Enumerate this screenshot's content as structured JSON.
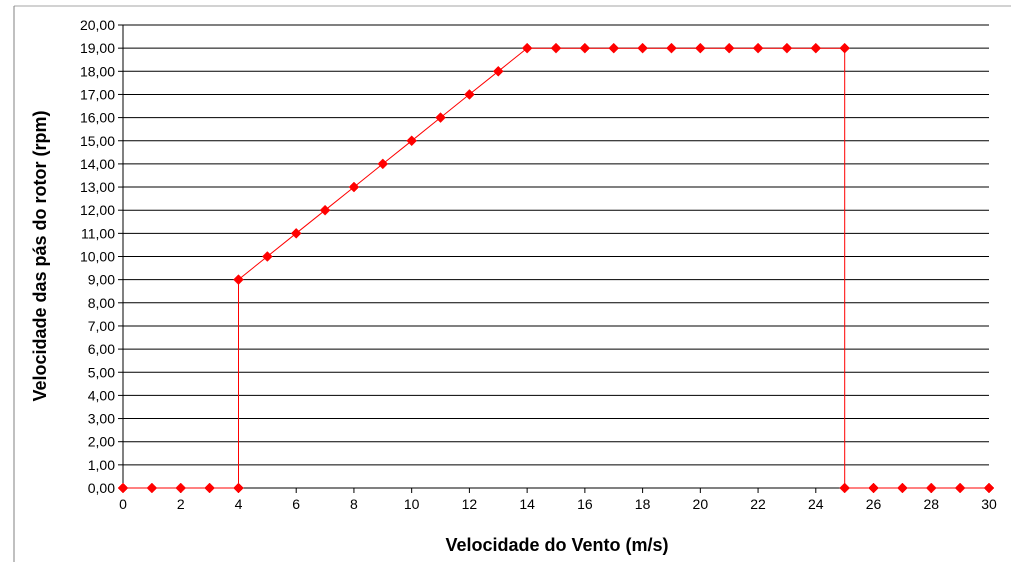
{
  "chart_data": {
    "type": "line",
    "title": "",
    "xlabel": "Velocidade do Vento (m/s)",
    "ylabel": "Velocidade das pás do rotor (rpm)",
    "xlim": [
      0,
      30
    ],
    "ylim": [
      0,
      20
    ],
    "x_ticks": [
      "0",
      "2",
      "4",
      "6",
      "8",
      "10",
      "12",
      "14",
      "16",
      "18",
      "20",
      "22",
      "24",
      "26",
      "28",
      "30"
    ],
    "y_ticks": [
      "0,00",
      "1,00",
      "2,00",
      "3,00",
      "4,00",
      "5,00",
      "6,00",
      "7,00",
      "8,00",
      "9,00",
      "10,00",
      "11,00",
      "12,00",
      "13,00",
      "14,00",
      "15,00",
      "16,00",
      "17,00",
      "18,00",
      "19,00",
      "20,00"
    ],
    "grid": "horizontal",
    "legend": "none",
    "series": [
      {
        "color": "#ff0000",
        "marker": "diamond",
        "points": [
          [
            0,
            0
          ],
          [
            1,
            0
          ],
          [
            2,
            0
          ],
          [
            3,
            0
          ],
          [
            4,
            0
          ],
          [
            4,
            9
          ],
          [
            5,
            10
          ],
          [
            6,
            11
          ],
          [
            7,
            12
          ],
          [
            8,
            13
          ],
          [
            9,
            14
          ],
          [
            10,
            15
          ],
          [
            11,
            16
          ],
          [
            12,
            17
          ],
          [
            13,
            18
          ],
          [
            14,
            19
          ],
          [
            15,
            19
          ],
          [
            16,
            19
          ],
          [
            17,
            19
          ],
          [
            18,
            19
          ],
          [
            19,
            19
          ],
          [
            20,
            19
          ],
          [
            21,
            19
          ],
          [
            22,
            19
          ],
          [
            23,
            19
          ],
          [
            24,
            19
          ],
          [
            25,
            19
          ],
          [
            25,
            0
          ],
          [
            26,
            0
          ],
          [
            27,
            0
          ],
          [
            28,
            0
          ],
          [
            29,
            0
          ],
          [
            30,
            0
          ]
        ]
      }
    ]
  }
}
